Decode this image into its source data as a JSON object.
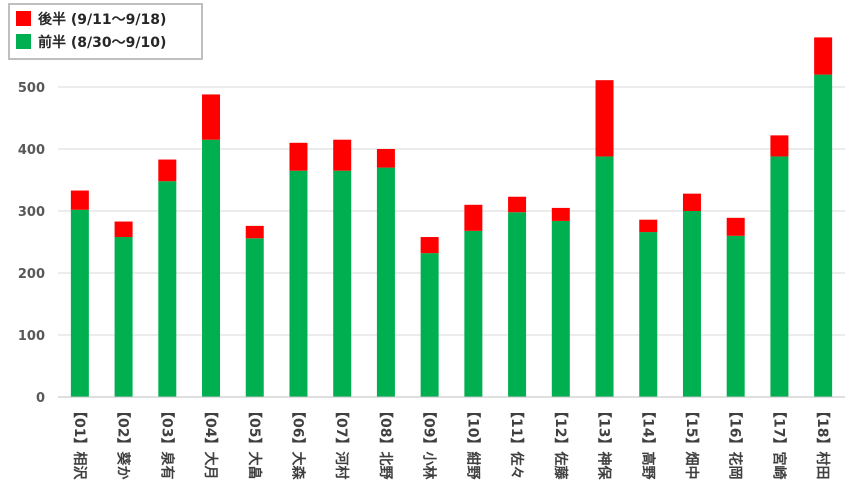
{
  "chart_data": {
    "type": "bar",
    "stacked": true,
    "title": "",
    "xlabel": "",
    "ylabel": "",
    "ylim": [
      0,
      600
    ],
    "yticks": [
      0,
      100,
      200,
      300,
      400,
      500
    ],
    "grid": "horizontal",
    "legend_position": "top-left",
    "categories": [
      "【01】相沢",
      "【02】葵か",
      "【03】泉有",
      "【04】大月",
      "【05】大畠",
      "【06】大森",
      "【07】河村",
      "【08】北野",
      "【09】小林",
      "【10】紺野",
      "【11】佐々",
      "【12】佐藤",
      "【13】神保",
      "【14】高野",
      "【15】畑中",
      "【16】花岡",
      "【17】宮崎",
      "【18】村田"
    ],
    "series": [
      {
        "name": "前半 (8/30〜9/10)",
        "color": "#00B050",
        "values": [
          302,
          258,
          348,
          415,
          256,
          365,
          365,
          370,
          232,
          268,
          298,
          284,
          388,
          266,
          300,
          260,
          388,
          520
        ]
      },
      {
        "name": "後半 (9/11〜9/18)",
        "color": "#FF0000",
        "values": [
          31,
          25,
          35,
          73,
          20,
          45,
          50,
          30,
          26,
          42,
          25,
          21,
          123,
          20,
          28,
          29,
          34,
          60
        ]
      }
    ]
  }
}
